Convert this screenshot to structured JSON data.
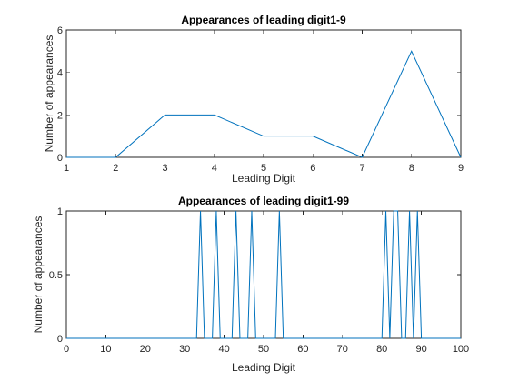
{
  "chart_data": [
    {
      "type": "line",
      "title": "Appearances of leading digit1-9",
      "xlabel": "Leading Digit",
      "ylabel": "Number of appearances",
      "xlim": [
        1,
        9
      ],
      "ylim": [
        0,
        6
      ],
      "xticks": [
        1,
        2,
        3,
        4,
        5,
        6,
        7,
        8,
        9
      ],
      "yticks": [
        0,
        2,
        4,
        6
      ],
      "grid": false,
      "color": "#0072BD",
      "x": [
        1,
        2,
        3,
        4,
        5,
        6,
        7,
        8,
        9
      ],
      "y": [
        0,
        0,
        2,
        2,
        1,
        1,
        0,
        5,
        0
      ]
    },
    {
      "type": "line",
      "title": "Appearances of leading digit1-99",
      "xlabel": "Leading Digit",
      "ylabel": "Number of appearances",
      "xlim": [
        0,
        100
      ],
      "ylim": [
        0,
        1
      ],
      "xticks": [
        0,
        10,
        20,
        30,
        40,
        50,
        60,
        70,
        80,
        90,
        100
      ],
      "yticks": [
        0,
        0.5,
        1
      ],
      "grid": false,
      "color": "#0072BD",
      "x": [
        0,
        33,
        34,
        35,
        37,
        38,
        39,
        42,
        43,
        44,
        46,
        47,
        48,
        53,
        54,
        55,
        80,
        81,
        82,
        83,
        84,
        85,
        86,
        87,
        88,
        89,
        90,
        100
      ],
      "y": [
        0,
        0,
        1,
        0,
        0,
        1,
        0,
        0,
        1,
        0,
        0,
        1,
        0,
        0,
        1,
        0,
        0,
        1,
        0,
        1,
        1,
        0,
        0,
        1,
        0,
        1,
        0,
        0
      ]
    }
  ]
}
